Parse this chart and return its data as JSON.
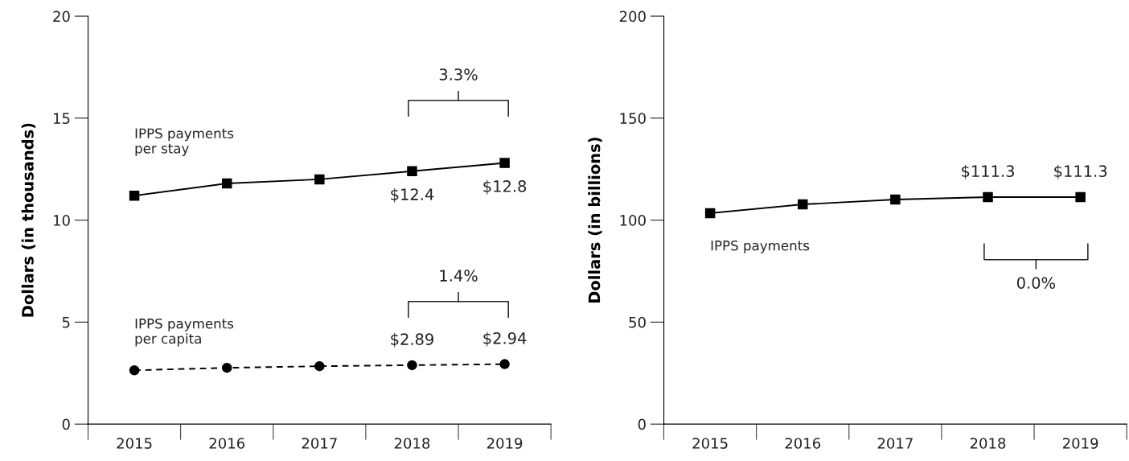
{
  "chart_data": [
    {
      "type": "line",
      "ylabel": "Dollars (in thousands)",
      "categories": [
        "2015",
        "2016",
        "2017",
        "2018",
        "2019"
      ],
      "ylim": [
        0,
        20
      ],
      "yticks": [
        0,
        5,
        10,
        15,
        20
      ],
      "grid": false,
      "legend": false,
      "series": [
        {
          "name": "IPPS payments\nper stay",
          "color": "#000000",
          "marker": "square",
          "line_style": "solid",
          "values": [
            11.2,
            11.8,
            12.0,
            12.4,
            12.8
          ],
          "value_labels": [
            null,
            null,
            null,
            "$12.4",
            "$12.8"
          ]
        },
        {
          "name": "IPPS payments\nper capita",
          "color": "#000000",
          "marker": "circle",
          "line_style": "dashed",
          "values": [
            2.64,
            2.76,
            2.84,
            2.89,
            2.94
          ],
          "value_labels": [
            null,
            null,
            null,
            "$2.89",
            "$2.94"
          ]
        }
      ],
      "annotations": [
        "3.3%",
        "1.4%"
      ]
    },
    {
      "type": "line",
      "ylabel": "Dollars (in billions)",
      "categories": [
        "2015",
        "2016",
        "2017",
        "2018",
        "2019"
      ],
      "ylim": [
        0,
        200
      ],
      "yticks": [
        0,
        50,
        100,
        150,
        200
      ],
      "grid": false,
      "legend": false,
      "series": [
        {
          "name": "IPPS payments",
          "color": "#000000",
          "marker": "square",
          "line_style": "solid",
          "values": [
            103.4,
            107.7,
            110.1,
            111.3,
            111.3
          ],
          "value_labels": [
            null,
            null,
            null,
            "$111.3",
            "$111.3"
          ]
        }
      ],
      "annotations": [
        "0.0%"
      ]
    }
  ]
}
